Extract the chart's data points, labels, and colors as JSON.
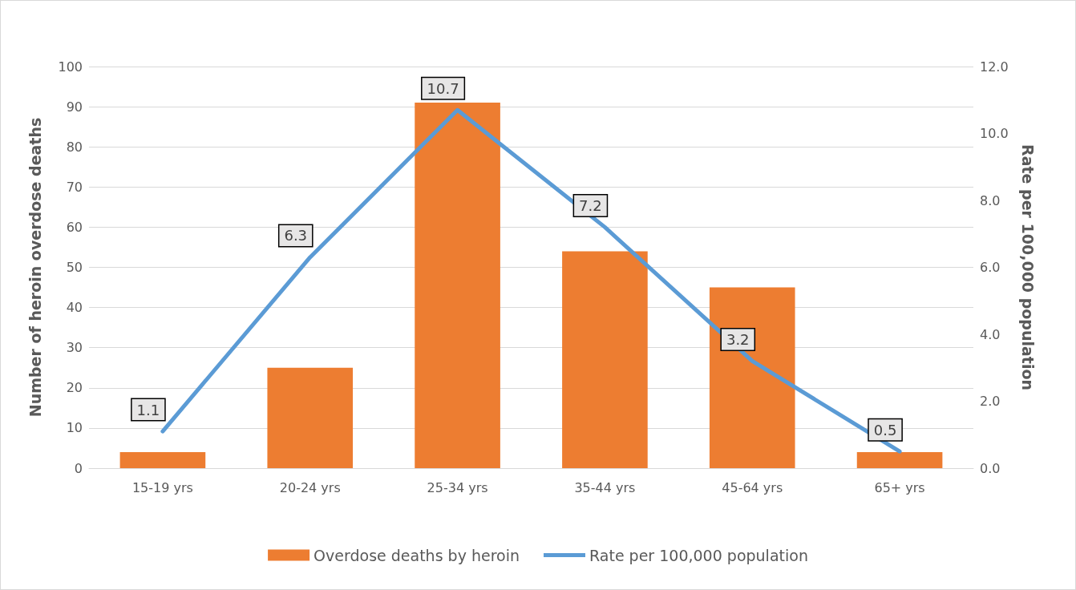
{
  "chart_data": {
    "type": "bar",
    "categories": [
      "15-19 yrs",
      "20-24 yrs",
      "25-34 yrs",
      "35-44 yrs",
      "45-64 yrs",
      "65+ yrs"
    ],
    "ylabel": "Number of heroin overdose deaths",
    "y2label": "Rate per 100,000 population",
    "ylim": [
      0,
      100
    ],
    "yticks": [
      0,
      10,
      20,
      30,
      40,
      50,
      60,
      70,
      80,
      90,
      100
    ],
    "y2lim": [
      0,
      12
    ],
    "y2ticks": [
      {
        "value": 0,
        "label": "0.0"
      },
      {
        "value": 2,
        "label": "2.0"
      },
      {
        "value": 4,
        "label": "4.0"
      },
      {
        "value": 6,
        "label": "6.0"
      },
      {
        "value": 8,
        "label": "8.0"
      },
      {
        "value": 10,
        "label": "10.0"
      },
      {
        "value": 12,
        "label": "12.0"
      }
    ],
    "series": [
      {
        "name": "Overdose deaths by heroin",
        "color": "#ed7d31",
        "values": [
          4,
          25,
          91,
          54,
          45,
          4
        ]
      },
      {
        "name": "Rate per 100,000 population",
        "type": "line",
        "axis": "y2",
        "color": "#5b9bd5",
        "values": [
          1.1,
          6.3,
          10.7,
          7.2,
          3.2,
          0.5
        ],
        "value_labels": [
          "1.1",
          "6.3",
          "10.7",
          "7.2",
          "3.2",
          "0.5"
        ]
      }
    ],
    "grid": "y",
    "legend": "bottom",
    "marker": "none",
    "line_style": "solid"
  }
}
